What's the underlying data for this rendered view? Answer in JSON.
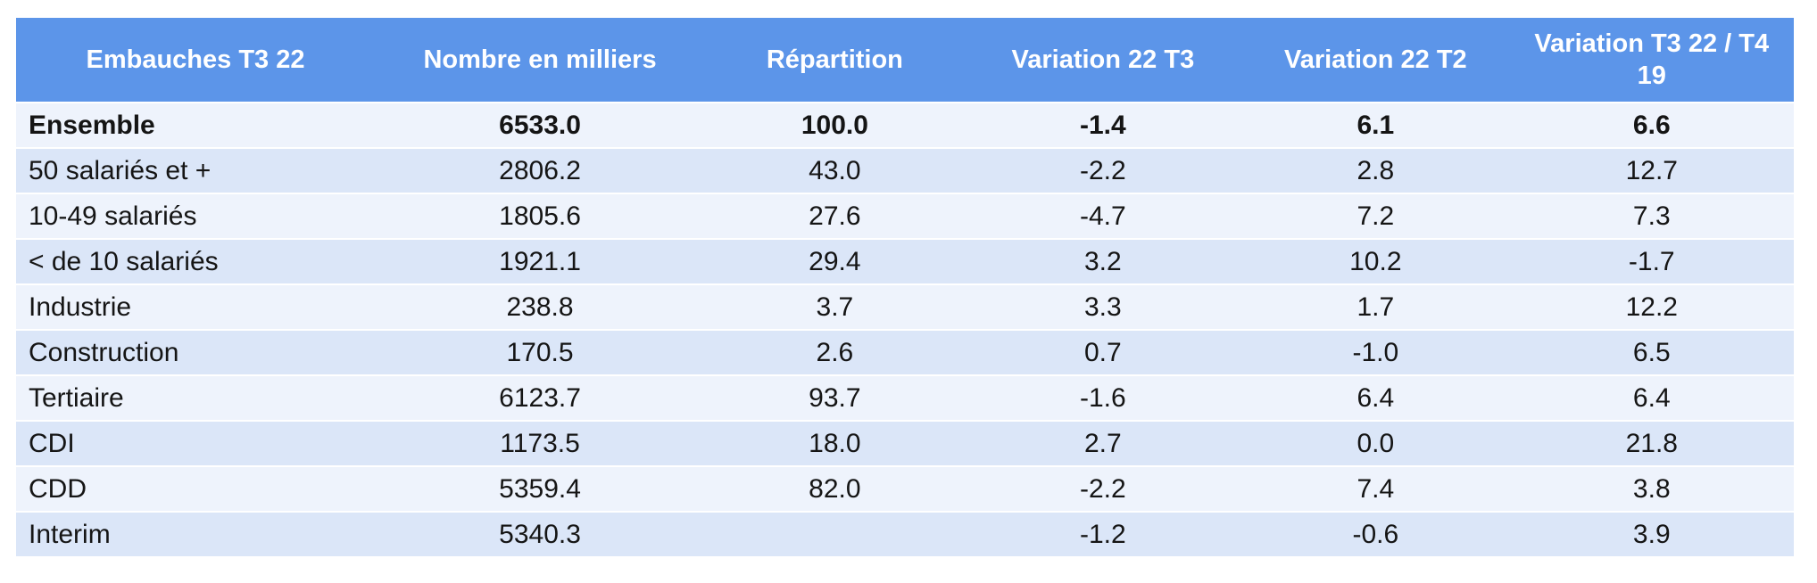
{
  "chart_data": {
    "type": "table",
    "title": "Embauches T3 22",
    "columns": [
      "Embauches T3 22",
      "Nombre en milliers",
      "Répartition",
      "Variation 22 T3",
      "Variation 22 T2",
      "Variation T3 22 / T4 19"
    ],
    "rows": [
      {
        "label": "Ensemble",
        "bold": true,
        "values": [
          "6533.0",
          "100.0",
          "-1.4",
          "6.1",
          "6.6"
        ]
      },
      {
        "label": "50 salariés et +",
        "bold": false,
        "values": [
          "2806.2",
          "43.0",
          "-2.2",
          "2.8",
          "12.7"
        ]
      },
      {
        "label": "10-49 salariés",
        "bold": false,
        "values": [
          "1805.6",
          "27.6",
          "-4.7",
          "7.2",
          "7.3"
        ]
      },
      {
        "label": "< de 10 salariés",
        "bold": false,
        "values": [
          "1921.1",
          "29.4",
          "3.2",
          "10.2",
          "-1.7"
        ]
      },
      {
        "label": "Industrie",
        "bold": false,
        "values": [
          "238.8",
          "3.7",
          "3.3",
          "1.7",
          "12.2"
        ]
      },
      {
        "label": "Construction",
        "bold": false,
        "values": [
          "170.5",
          "2.6",
          "0.7",
          "-1.0",
          "6.5"
        ]
      },
      {
        "label": "Tertiaire",
        "bold": false,
        "values": [
          "6123.7",
          "93.7",
          "-1.6",
          "6.4",
          "6.4"
        ]
      },
      {
        "label": "CDI",
        "bold": false,
        "values": [
          "1173.5",
          "18.0",
          "2.7",
          "0.0",
          "21.8"
        ]
      },
      {
        "label": "CDD",
        "bold": false,
        "values": [
          "5359.4",
          "82.0",
          "-2.2",
          "7.4",
          "3.8"
        ]
      },
      {
        "label": "Interim",
        "bold": false,
        "values": [
          "5340.3",
          "",
          "-1.2",
          "-0.6",
          "3.9"
        ]
      }
    ],
    "layout": {
      "grid": "off",
      "row_striping": "alternating",
      "header_position": "top"
    }
  },
  "colors": {
    "header_bg": "#5C95E9",
    "header_text": "#FFFFFF",
    "row_light": "#EEF3FC",
    "row_dark": "#DBE6F8",
    "body_text": "#151515"
  }
}
